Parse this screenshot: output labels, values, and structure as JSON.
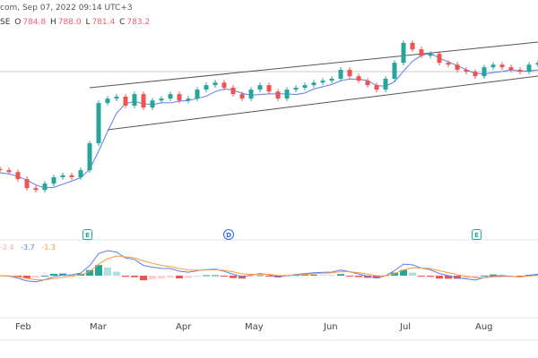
{
  "header": {
    "source_date": "com, Sep 07, 2022 09:14 UTC+3",
    "exchange": "SE",
    "o_label": "O",
    "o": "784.8",
    "h_label": "H",
    "h": "788.0",
    "l_label": "L",
    "l": "781.4",
    "c_label": "C",
    "c": "783.2"
  },
  "macd_legend": {
    "hist": "-2.4",
    "macd": "-3.7",
    "signal": "-1.3"
  },
  "events": [
    {
      "label": "E"
    },
    {
      "label": "D"
    },
    {
      "label": "E"
    }
  ],
  "months": [
    "Feb",
    "Mar",
    "Apr",
    "May",
    "Jun",
    "Jul",
    "Aug"
  ],
  "colors": {
    "up": "#26a69a",
    "down": "#ef5350",
    "ma": "#5b7cf0",
    "signal": "#ff9a3c",
    "macd": "#5b7cf0"
  },
  "chart_data": {
    "type": "candlestick",
    "closes": [
      615,
      612,
      601,
      587,
      584,
      594,
      604,
      607,
      604,
      615,
      657,
      720,
      727,
      730,
      716,
      734,
      713,
      724,
      727,
      734,
      724,
      727,
      741,
      748,
      752,
      744,
      734,
      727,
      741,
      748,
      738,
      727,
      741,
      744,
      748,
      752,
      755,
      758,
      772,
      762,
      755,
      748,
      741,
      758,
      783,
      814,
      804,
      794,
      797,
      783,
      780,
      772,
      769,
      762,
      776,
      780,
      776,
      772,
      769,
      780,
      783
    ],
    "last": {
      "open": 784.8,
      "high": 788.0,
      "low": 781.4,
      "close": 783.2
    },
    "x_ticks": [
      "Feb",
      "Mar",
      "Apr",
      "May",
      "Jun",
      "Jul",
      "Aug"
    ],
    "indicators": [
      "moving average",
      "ascending channel",
      "MACD"
    ]
  }
}
